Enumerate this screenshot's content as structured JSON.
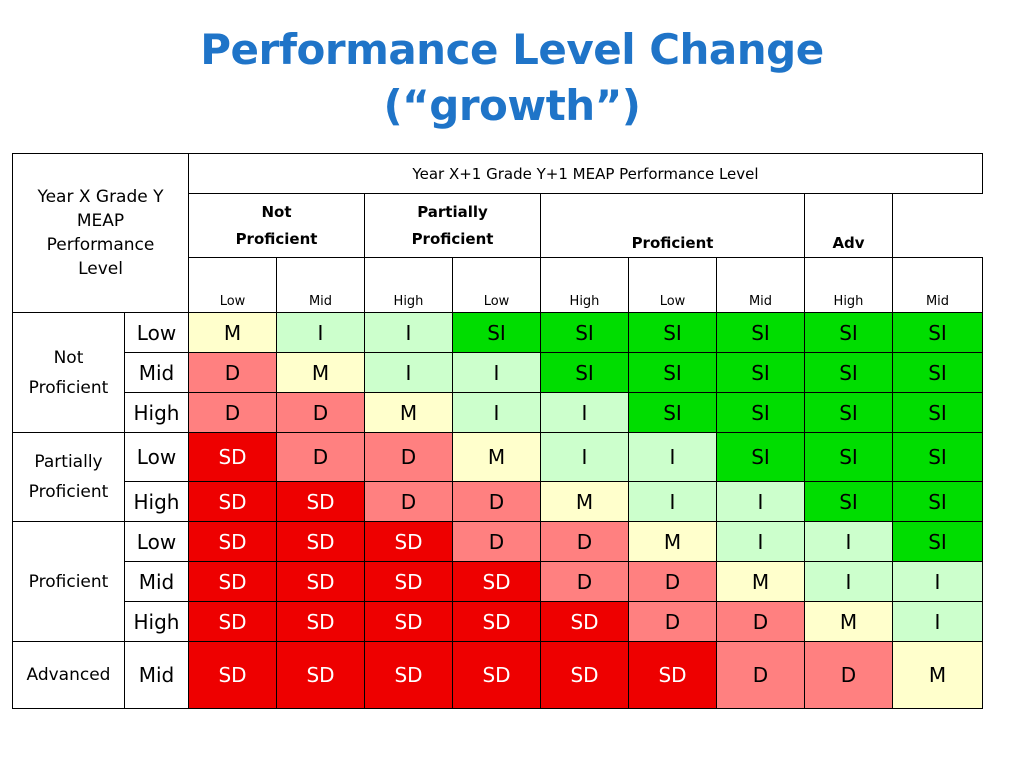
{
  "title": {
    "line1": "Performance Level Change",
    "line2": "(“growth”)"
  },
  "table": {
    "corner_header": [
      "Year X Grade Y",
      "MEAP",
      "Performance",
      "Level"
    ],
    "top_header": "Year X+1 Grade Y+1 MEAP Performance Level",
    "column_groups": [
      {
        "lines": [
          "Not",
          "Proficient"
        ]
      },
      {
        "lines": [
          "Partially",
          "Proficient"
        ]
      },
      {
        "lines": [
          "",
          "Proficient"
        ]
      },
      {
        "lines": [
          "",
          "Adv"
        ]
      }
    ],
    "column_levels": [
      "Low",
      "Mid",
      "High",
      "Low",
      "High",
      "Low",
      "Mid",
      "High",
      "Mid"
    ],
    "row_groups": [
      {
        "lines": [
          "Not",
          "Proficient"
        ]
      },
      {
        "lines": [
          "Partially",
          "Proficient"
        ]
      },
      {
        "lines": [
          "Proficient"
        ]
      },
      {
        "lines": [
          "Advanced"
        ]
      }
    ],
    "rows": [
      {
        "level": "Low",
        "cells": [
          "M",
          "I",
          "I",
          "SI",
          "SI",
          "SI",
          "SI",
          "SI",
          "SI"
        ]
      },
      {
        "level": "Mid",
        "cells": [
          "D",
          "M",
          "I",
          "I",
          "SI",
          "SI",
          "SI",
          "SI",
          "SI"
        ]
      },
      {
        "level": "High",
        "cells": [
          "D",
          "D",
          "M",
          "I",
          "I",
          "SI",
          "SI",
          "SI",
          "SI"
        ]
      },
      {
        "level": "Low",
        "cells": [
          "SD",
          "D",
          "D",
          "M",
          "I",
          "I",
          "SI",
          "SI",
          "SI"
        ]
      },
      {
        "level": "High",
        "cells": [
          "SD",
          "SD",
          "D",
          "D",
          "M",
          "I",
          "I",
          "SI",
          "SI"
        ]
      },
      {
        "level": "Low",
        "cells": [
          "SD",
          "SD",
          "SD",
          "D",
          "D",
          "M",
          "I",
          "I",
          "SI"
        ]
      },
      {
        "level": "Mid",
        "cells": [
          "SD",
          "SD",
          "SD",
          "SD",
          "D",
          "D",
          "M",
          "I",
          "I"
        ]
      },
      {
        "level": "High",
        "cells": [
          "SD",
          "SD",
          "SD",
          "SD",
          "SD",
          "D",
          "D",
          "M",
          "I"
        ]
      },
      {
        "level": "Mid",
        "cells": [
          "SD",
          "SD",
          "SD",
          "SD",
          "SD",
          "SD",
          "D",
          "D",
          "M"
        ]
      }
    ]
  },
  "colors": {
    "M": "#ffffcc",
    "I": "#ccffcc",
    "SI": "#00dd00",
    "D": "#ff8080",
    "SD": "#ee0000",
    "title": "#1f74c8"
  }
}
